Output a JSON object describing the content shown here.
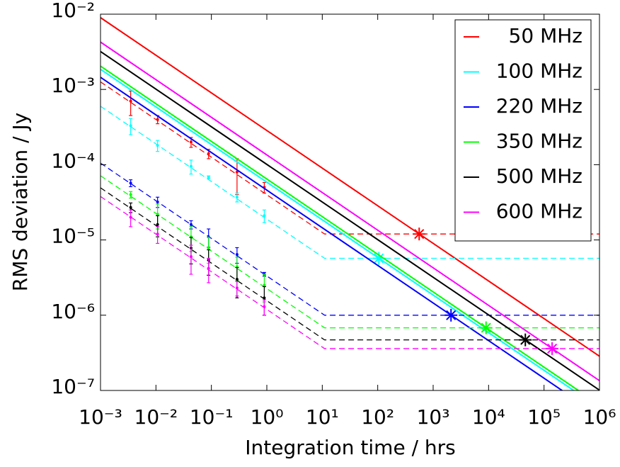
{
  "chart_data": {
    "type": "line",
    "log_x": true,
    "log_y": true,
    "xlabel": "Integration time / hrs",
    "ylabel": "RMS deviation / Jy",
    "xlim": [
      0.001,
      1000000
    ],
    "ylim": [
      1e-07,
      0.01
    ],
    "xticks": [
      {
        "value": 0.001,
        "label": "10⁻³"
      },
      {
        "value": 0.01,
        "label": "10⁻²"
      },
      {
        "value": 0.1,
        "label": "10⁻¹"
      },
      {
        "value": 1,
        "label": "10⁰"
      },
      {
        "value": 10,
        "label": "10¹"
      },
      {
        "value": 100,
        "label": "10²"
      },
      {
        "value": 1000,
        "label": "10³"
      },
      {
        "value": 10000,
        "label": "10⁴"
      },
      {
        "value": 100000,
        "label": "10⁵"
      },
      {
        "value": 1000000,
        "label": "10⁶"
      }
    ],
    "yticks": [
      {
        "value": 1e-07,
        "label": "10⁻⁷"
      },
      {
        "value": 1e-06,
        "label": "10⁻⁶"
      },
      {
        "value": 1e-05,
        "label": "10⁻⁵"
      },
      {
        "value": 0.0001,
        "label": "10⁻⁴"
      },
      {
        "value": 0.001,
        "label": "10⁻³"
      },
      {
        "value": 0.01,
        "label": "10⁻²"
      }
    ],
    "legend": "upper right",
    "x": [
      0.0035,
      0.0107,
      0.043,
      0.089,
      0.29,
      0.9
    ],
    "model_x": [
      0.001,
      1000000
    ],
    "floor_x": [
      0.001,
      11,
      1000000
    ],
    "series": [
      {
        "name": "50 MHz",
        "color": "#ff0000",
        "values": [
          0.0007,
          0.0004,
          0.0002,
          0.00014,
          8e-05,
          5e-05
        ],
        "errors": [
          0.00025,
          5e-05,
          3e-05,
          2e-05,
          4e-05,
          8e-06
        ],
        "model": [
          0.009,
          2.85e-07
        ],
        "floor": [
          0.00126,
          1.2e-05,
          1.2e-05
        ],
        "star_x": 560,
        "star_y": 1.2e-05
      },
      {
        "name": "100 MHz",
        "color": "#00ffff",
        "values": [
          0.00033,
          0.00018,
          9.5e-05,
          6.8e-05,
          3.7e-05,
          2.1e-05
        ],
        "errors": [
          8e-05,
          3e-05,
          2e-05,
          3e-06,
          5e-06,
          4e-06
        ],
        "model": [
          0.00185,
          5.85e-08
        ],
        "floor": [
          0.000598,
          5.7e-06,
          5.7e-06
        ],
        "star_x": 105,
        "star_y": 5.7e-06
      },
      {
        "name": "220 MHz",
        "color": "#0000ff",
        "values": [
          5.7e-05,
          3.2e-05,
          1.6e-05,
          1.1e-05,
          6.4e-06,
          3.5e-06
        ],
        "errors": [
          6e-06,
          5e-06,
          2e-06,
          3e-06,
          1.5e-06,
          2e-07
        ],
        "model": [
          0.00145,
          4.6e-08
        ],
        "floor": [
          0.000105,
          1e-06,
          1e-06
        ],
        "star_x": 2100,
        "star_y": 1e-06
      },
      {
        "name": "350 MHz",
        "color": "#00ff00",
        "values": [
          4e-05,
          2.2e-05,
          1.1e-05,
          7.9e-06,
          4.4e-06,
          2.5e-06
        ],
        "errors": [
          4e-06,
          8e-06,
          4e-06,
          3e-06,
          1.5e-06,
          1e-06
        ],
        "model": [
          0.00204,
          6.45e-08
        ],
        "floor": [
          7.13e-05,
          6.8e-07,
          6.8e-07
        ],
        "star_x": 9000,
        "star_y": 6.8e-07
      },
      {
        "name": "500 MHz",
        "color": "#000000",
        "values": [
          2.7e-05,
          1.6e-05,
          7.8e-06,
          5.4e-06,
          3e-06,
          1.7e-06
        ],
        "errors": [
          4e-06,
          5e-06,
          3e-06,
          2e-06,
          1.3e-06,
          7e-07
        ],
        "model": [
          0.00319,
          1.01e-07
        ],
        "floor": [
          4.93e-05,
          4.7e-07,
          4.7e-07
        ],
        "star_x": 46000,
        "star_y": 4.7e-07
      },
      {
        "name": "600 MHz",
        "color": "#ff00ff",
        "values": [
          2e-05,
          1.2e-05,
          6e-06,
          4.2e-06,
          2.3e-06,
          1.3e-06
        ],
        "errors": [
          5e-06,
          3e-06,
          2.5e-06,
          1.5e-06,
          5e-07,
          3e-07
        ],
        "model": [
          0.00426,
          1.35e-07
        ],
        "floor": [
          3.78e-05,
          3.6e-07,
          3.6e-07
        ],
        "star_x": 140000,
        "star_y": 3.6e-07
      }
    ]
  }
}
